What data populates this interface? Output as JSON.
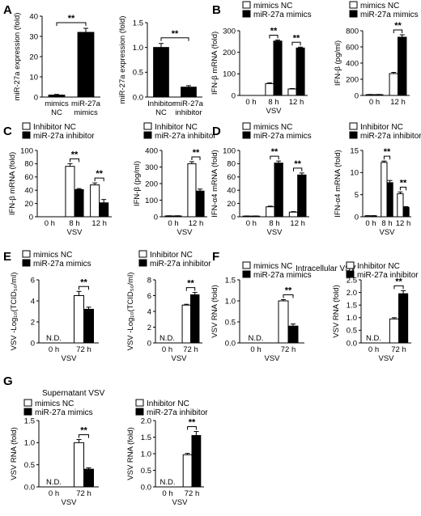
{
  "panel_letters": [
    "A",
    "B",
    "C",
    "D",
    "E",
    "F",
    "G"
  ],
  "headers": {
    "f": "Intracellular VSV",
    "g": "Supernatant VSV"
  },
  "colors": {
    "filled": "#000000",
    "open": "#ffffff",
    "stroke": "#000000"
  },
  "chart_data": [
    {
      "id": "A1",
      "type": "bar",
      "ylabel": "miR-27a expression (fold)",
      "ylim": [
        0,
        40
      ],
      "yticks": [
        0,
        10,
        20,
        30,
        40
      ],
      "categories": [
        [
          "mimics",
          "NC"
        ],
        [
          "miR-27a",
          "mimics"
        ]
      ],
      "xlabel": "",
      "series": [
        {
          "fill": "#000000",
          "values": [
            1,
            32
          ],
          "errors": [
            0.3,
            2
          ]
        }
      ],
      "sig": [
        {
          "from": 0,
          "to": 1,
          "text": "**"
        }
      ]
    },
    {
      "id": "A2",
      "type": "bar",
      "ylabel": "miR-27a expression (fold)",
      "ylim": [
        0,
        1.5
      ],
      "yticks": [
        0.0,
        0.5,
        1.0,
        1.5
      ],
      "decimals": 1,
      "categories": [
        [
          "Inhibitor",
          "NC"
        ],
        [
          "miR-27a",
          "inhibitor"
        ]
      ],
      "xlabel": "",
      "series": [
        {
          "fill": "#000000",
          "values": [
            1.0,
            0.2
          ],
          "errors": [
            0.08,
            0.03
          ]
        }
      ],
      "sig": [
        {
          "from": 0,
          "to": 1,
          "text": "**"
        }
      ]
    },
    {
      "id": "B1",
      "type": "bar",
      "ylabel": "IFN-β mRNA (fold)",
      "ylim": [
        0,
        300
      ],
      "yticks": [
        0,
        100,
        200,
        300
      ],
      "categories": [
        [
          "0 h"
        ],
        [
          "8 h"
        ],
        [
          "12 h"
        ]
      ],
      "xlabel": "VSV",
      "series": [
        {
          "name": "mimics NC",
          "fill": "#ffffff",
          "values": [
            0,
            55,
            30
          ],
          "errors": [
            0,
            3,
            2
          ]
        },
        {
          "name": "miR-27a mimics",
          "fill": "#000000",
          "values": [
            0,
            252,
            220
          ],
          "errors": [
            0,
            5,
            4
          ]
        }
      ],
      "sig": [
        {
          "group": 1,
          "text": "**"
        },
        {
          "group": 2,
          "text": "**"
        }
      ]
    },
    {
      "id": "B2",
      "type": "bar",
      "ylabel": "IFN-β (pg/ml)",
      "ylim": [
        0,
        800
      ],
      "yticks": [
        0,
        200,
        400,
        600,
        800
      ],
      "categories": [
        [
          "0 h"
        ],
        [
          "12 h"
        ]
      ],
      "xlabel": "",
      "series": [
        {
          "name": "mimics NC",
          "fill": "#ffffff",
          "values": [
            10,
            270
          ],
          "errors": [
            2,
            15
          ]
        },
        {
          "name": "miR-27a mimics",
          "fill": "#000000",
          "values": [
            10,
            720
          ],
          "errors": [
            2,
            30
          ]
        }
      ],
      "sig": [
        {
          "group": 1,
          "text": "**"
        }
      ]
    },
    {
      "id": "C1",
      "type": "bar",
      "ylabel": "IFN-β mRNA (fold)",
      "ylim": [
        0,
        100
      ],
      "yticks": [
        0,
        20,
        40,
        60,
        80,
        100
      ],
      "categories": [
        [
          "0 h"
        ],
        [
          "8 h"
        ],
        [
          "12 h"
        ]
      ],
      "xlabel": "VSV",
      "series": [
        {
          "name": "Inhibitor NC",
          "fill": "#ffffff",
          "values": [
            0,
            76,
            48
          ],
          "errors": [
            0,
            4,
            3
          ]
        },
        {
          "name": "miR-27a inhibitor",
          "fill": "#000000",
          "values": [
            0,
            41,
            21
          ],
          "errors": [
            0,
            1.5,
            5
          ]
        }
      ],
      "sig": [
        {
          "group": 1,
          "text": "**"
        },
        {
          "group": 2,
          "text": "**"
        }
      ]
    },
    {
      "id": "C2",
      "type": "bar",
      "ylabel": "IFN-β (pg/ml)",
      "ylim": [
        0,
        400
      ],
      "yticks": [
        0,
        100,
        200,
        300,
        400
      ],
      "categories": [
        [
          "0 h"
        ],
        [
          "12 h"
        ]
      ],
      "xlabel": "VSV",
      "series": [
        {
          "name": "Inhibitor NC",
          "fill": "#ffffff",
          "values": [
            5,
            320
          ],
          "errors": [
            1,
            12
          ]
        },
        {
          "name": "miR-27a inhibitor",
          "fill": "#000000",
          "values": [
            5,
            155
          ],
          "errors": [
            1,
            12
          ]
        }
      ],
      "sig": [
        {
          "group": 1,
          "text": "**"
        }
      ]
    },
    {
      "id": "D1",
      "type": "bar",
      "ylabel": "IFN-α4 mRNA (fold)",
      "ylim": [
        0,
        100
      ],
      "yticks": [
        0,
        20,
        40,
        60,
        80,
        100
      ],
      "categories": [
        [
          "0 h"
        ],
        [
          "8 h"
        ],
        [
          "12 h"
        ]
      ],
      "xlabel": "VSV",
      "series": [
        {
          "name": "mimics NC",
          "fill": "#ffffff",
          "values": [
            1,
            15,
            7
          ],
          "errors": [
            0.2,
            1,
            0.8
          ]
        },
        {
          "name": "miR-27a mimics",
          "fill": "#000000",
          "values": [
            1,
            81,
            63
          ],
          "errors": [
            0.2,
            3,
            3
          ]
        }
      ],
      "sig": [
        {
          "group": 1,
          "text": "**"
        },
        {
          "group": 2,
          "text": "**"
        }
      ]
    },
    {
      "id": "D2",
      "type": "bar",
      "ylabel": "IFN-α4 mRNA (fold)",
      "ylim": [
        0,
        15
      ],
      "yticks": [
        0,
        5,
        10,
        15
      ],
      "categories": [
        [
          "0 h"
        ],
        [
          "8 h"
        ],
        [
          "12 h"
        ]
      ],
      "xlabel": "VSV",
      "series": [
        {
          "name": "Inhibitor NC",
          "fill": "#ffffff",
          "values": [
            0.2,
            12.3,
            5.2
          ],
          "errors": [
            0.05,
            0.3,
            0.4
          ]
        },
        {
          "name": "miR-27a inhibitor",
          "fill": "#000000",
          "values": [
            0.2,
            7.7,
            2.1
          ],
          "errors": [
            0.05,
            0.5,
            0.2
          ]
        }
      ],
      "sig": [
        {
          "group": 1,
          "text": "**"
        },
        {
          "group": 2,
          "text": "**"
        }
      ]
    },
    {
      "id": "E1",
      "type": "bar",
      "ylabel": "VSV -Log₁₀(TCID₅₀/ml)",
      "ylim": [
        0,
        6
      ],
      "yticks": [
        0,
        2,
        4,
        6
      ],
      "categories": [
        [
          "0 h"
        ],
        [
          "72 h"
        ]
      ],
      "xlabel": "VSV",
      "series": [
        {
          "name": "mimics NC",
          "fill": "#ffffff",
          "values": [
            0,
            4.5
          ],
          "errors": [
            0,
            0.4
          ]
        },
        {
          "name": "miR-27a mimics",
          "fill": "#000000",
          "values": [
            0,
            3.2
          ],
          "errors": [
            0,
            0.2
          ]
        }
      ],
      "sig": [
        {
          "group": 1,
          "text": "**"
        }
      ],
      "nd": [
        {
          "group": 0,
          "text": "N.D."
        }
      ]
    },
    {
      "id": "E2",
      "type": "bar",
      "ylabel": "VSV -Log₁₀(TCID₅₀/ml)",
      "ylim": [
        0,
        8
      ],
      "yticks": [
        0,
        2,
        4,
        6,
        8
      ],
      "categories": [
        [
          "0 h"
        ],
        [
          "72 h"
        ]
      ],
      "xlabel": "VSV",
      "series": [
        {
          "name": "Inhibitor NC",
          "fill": "#ffffff",
          "values": [
            0,
            4.8
          ],
          "errors": [
            0,
            0.1
          ]
        },
        {
          "name": "miR-27a inhibitor",
          "fill": "#000000",
          "values": [
            0,
            6.1
          ],
          "errors": [
            0,
            0.3
          ]
        }
      ],
      "sig": [
        {
          "group": 1,
          "text": "**"
        }
      ],
      "nd": [
        {
          "group": 0,
          "text": "N.D."
        }
      ]
    },
    {
      "id": "F1",
      "type": "bar",
      "ylabel": "VSV RNA (fold)",
      "ylim": [
        0,
        1.5
      ],
      "yticks": [
        0.0,
        0.5,
        1.0,
        1.5
      ],
      "decimals": 1,
      "categories": [
        [
          "0 h"
        ],
        [
          "72 h"
        ]
      ],
      "xlabel": "VSV",
      "series": [
        {
          "name": "mimics NC",
          "fill": "#ffffff",
          "values": [
            0,
            1.0
          ],
          "errors": [
            0,
            0.03
          ]
        },
        {
          "name": "miR-27a mimics",
          "fill": "#000000",
          "values": [
            0,
            0.4
          ],
          "errors": [
            0,
            0.05
          ]
        }
      ],
      "sig": [
        {
          "group": 1,
          "text": "**"
        }
      ],
      "nd": [
        {
          "group": 0,
          "text": "N.D."
        }
      ]
    },
    {
      "id": "F2",
      "type": "bar",
      "ylabel": "VSV RNA (fold)",
      "ylim": [
        0,
        2.5
      ],
      "yticks": [
        0.0,
        0.5,
        1.0,
        1.5,
        2.0,
        2.5
      ],
      "decimals": 1,
      "categories": [
        [
          "0 h"
        ],
        [
          "72 h"
        ]
      ],
      "xlabel": "VSV",
      "series": [
        {
          "name": "Inhibitor NC",
          "fill": "#ffffff",
          "values": [
            0,
            0.95
          ],
          "errors": [
            0,
            0.05
          ]
        },
        {
          "name": "miR-27a inhibitor",
          "fill": "#000000",
          "values": [
            0,
            1.95
          ],
          "errors": [
            0,
            0.12
          ]
        }
      ],
      "sig": [
        {
          "group": 1,
          "text": "**"
        }
      ],
      "nd": [
        {
          "group": 0,
          "text": "N.D."
        }
      ]
    },
    {
      "id": "G1",
      "type": "bar",
      "ylabel": "VSV RNA (fold)",
      "ylim": [
        0,
        1.5
      ],
      "yticks": [
        0.0,
        0.5,
        1.0,
        1.5
      ],
      "decimals": 1,
      "categories": [
        [
          "0 h"
        ],
        [
          "72 h"
        ]
      ],
      "xlabel": "VSV",
      "series": [
        {
          "name": "mimics NC",
          "fill": "#ffffff",
          "values": [
            0,
            1.0
          ],
          "errors": [
            0,
            0.07
          ]
        },
        {
          "name": "miR-27a mimics",
          "fill": "#000000",
          "values": [
            0,
            0.4
          ],
          "errors": [
            0,
            0.03
          ]
        }
      ],
      "sig": [
        {
          "group": 1,
          "text": "**"
        }
      ],
      "nd": [
        {
          "group": 0,
          "text": "N.D."
        }
      ]
    },
    {
      "id": "G2",
      "type": "bar",
      "ylabel": "VSV RNA (fold)",
      "ylim": [
        0,
        2.0
      ],
      "yticks": [
        0.0,
        0.5,
        1.0,
        1.5,
        2.0
      ],
      "decimals": 1,
      "categories": [
        [
          "0 h"
        ],
        [
          "72 h"
        ]
      ],
      "xlabel": "VSV",
      "series": [
        {
          "name": "Inhibitor NC",
          "fill": "#ffffff",
          "values": [
            0,
            0.97
          ],
          "errors": [
            0,
            0.04
          ]
        },
        {
          "name": "miR-27a inhibitor",
          "fill": "#000000",
          "values": [
            0,
            1.55
          ],
          "errors": [
            0,
            0.12
          ]
        }
      ],
      "sig": [
        {
          "group": 1,
          "text": "**"
        }
      ],
      "nd": [
        {
          "group": 0,
          "text": "N.D."
        }
      ]
    }
  ]
}
